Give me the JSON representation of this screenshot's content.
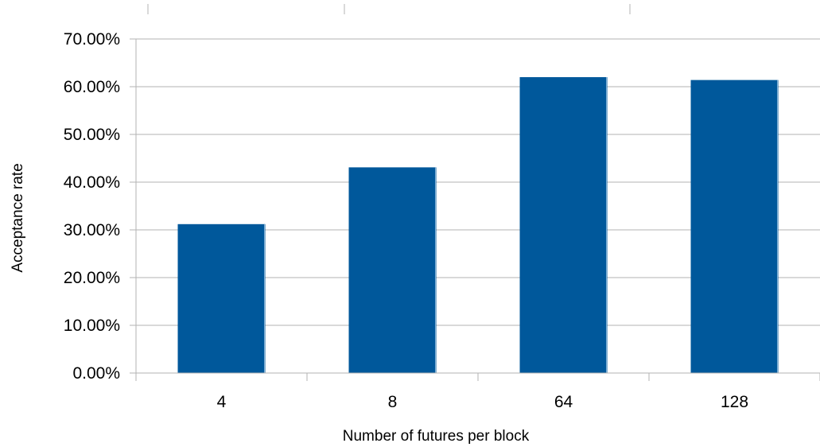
{
  "chart_data": {
    "type": "bar",
    "title": "",
    "xlabel": "Number of futures per block",
    "ylabel": "Acceptance rate",
    "categories": [
      "4",
      "8",
      "64",
      "128"
    ],
    "series": [
      {
        "values": [
          0.312,
          0.431,
          0.62,
          0.614
        ]
      }
    ],
    "ylim": [
      0,
      0.7
    ],
    "yticks": [
      0,
      0.1,
      0.2,
      0.3,
      0.4,
      0.5,
      0.6,
      0.7
    ],
    "ytick_labels": [
      "0.00%",
      "10.00%",
      "20.00%",
      "30.00%",
      "40.00%",
      "50.00%",
      "60.00%",
      "70.00%"
    ],
    "grid": true,
    "legend": "none",
    "bar_color": "#00589b"
  }
}
